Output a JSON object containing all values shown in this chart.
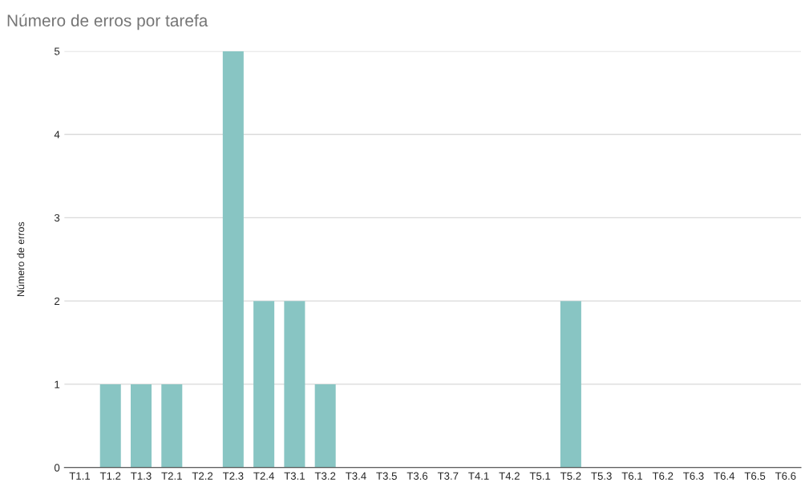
{
  "chart_data": {
    "type": "bar",
    "title": "Número de erros por tarefa",
    "ylabel": "Número de erros",
    "categories": [
      "T1.1",
      "T1.2",
      "T1.3",
      "T2.1",
      "T2.2",
      "T2.3",
      "T2.4",
      "T3.1",
      "T3.2",
      "T3.4",
      "T3.5",
      "T3.6",
      "T3.7",
      "T4.1",
      "T4.2",
      "T5.1",
      "T5.2",
      "T5.3",
      "T6.1",
      "T6.2",
      "T6.3",
      "T6.4",
      "T6.5",
      "T6.6"
    ],
    "values": [
      0,
      1,
      1,
      1,
      0,
      5,
      2,
      2,
      1,
      0,
      0,
      0,
      0,
      0,
      0,
      0,
      2,
      0,
      0,
      0,
      0,
      0,
      0,
      0
    ],
    "color": "#88c5c3",
    "ylim": [
      0,
      5
    ],
    "yticks": [
      0,
      1,
      2,
      3,
      4,
      5
    ],
    "grid": "y",
    "legend": false
  }
}
